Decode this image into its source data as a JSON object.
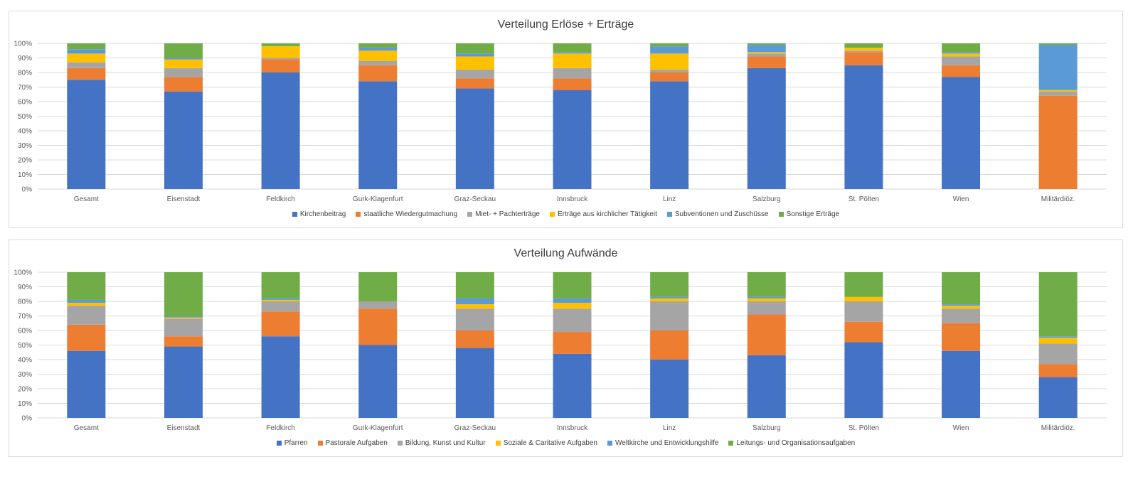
{
  "chart_data": [
    {
      "type": "bar",
      "stacked": true,
      "title": "Verteilung Erlöse + Erträge",
      "categories": [
        "Gesamt",
        "Eisenstadt",
        "Feldkirch",
        "Gurk-Klagenfurt",
        "Graz-Seckau",
        "Innsbruck",
        "Linz",
        "Salzburg",
        "St. Pölten",
        "Wien",
        "Militärdiöz."
      ],
      "yticks": [
        "0%",
        "10%",
        "20%",
        "30%",
        "40%",
        "50%",
        "60%",
        "70%",
        "80%",
        "90%",
        "100%"
      ],
      "ylim": [
        0,
        100
      ],
      "grid": true,
      "legend_position": "bottom",
      "series": [
        {
          "name": "Kirchenbeitrag",
          "color": "#4472C4",
          "values": [
            75,
            67,
            80,
            74,
            69,
            68,
            74,
            83,
            85,
            77,
            0
          ]
        },
        {
          "name": "staatliche Wiedergutmachung",
          "color": "#ED7D31",
          "values": [
            8,
            10,
            9,
            11,
            7,
            8,
            6,
            8,
            9,
            8,
            64
          ]
        },
        {
          "name": "Miet- + Pachterträge",
          "color": "#A5A5A5",
          "values": [
            4,
            6,
            1,
            3,
            6,
            7,
            2,
            2,
            1,
            6,
            3
          ]
        },
        {
          "name": "Erträge aus kirchlicher Tätigkeit",
          "color": "#FFC000",
          "values": [
            6,
            6,
            8,
            7,
            9,
            10,
            11,
            1,
            2,
            2,
            1
          ]
        },
        {
          "name": "Subventionen und Zuschüsse",
          "color": "#5B9BD5",
          "values": [
            3,
            1,
            0,
            2,
            2,
            1,
            5,
            5,
            0,
            1,
            31
          ]
        },
        {
          "name": "Sonstige Erträge",
          "color": "#70AD47",
          "values": [
            4,
            10,
            2,
            3,
            7,
            6,
            2,
            1,
            3,
            6,
            1
          ]
        }
      ]
    },
    {
      "type": "bar",
      "stacked": true,
      "title": "Verteilung Aufwände",
      "categories": [
        "Gesamt",
        "Eisenstadt",
        "Feldkirch",
        "Gurk-Klagenfurt",
        "Graz-Seckau",
        "Innsbruck",
        "Linz",
        "Salzburg",
        "St. Pölten",
        "Wien",
        "Militärdiöz."
      ],
      "yticks": [
        "0%",
        "10%",
        "20%",
        "30%",
        "40%",
        "50%",
        "60%",
        "70%",
        "80%",
        "90%",
        "100%"
      ],
      "ylim": [
        0,
        100
      ],
      "grid": true,
      "legend_position": "bottom",
      "series": [
        {
          "name": "Pfarren",
          "color": "#4472C4",
          "values": [
            46,
            49,
            56,
            50,
            48,
            44,
            40,
            43,
            52,
            46,
            28
          ]
        },
        {
          "name": "Pastorale Aufgaben",
          "color": "#ED7D31",
          "values": [
            18,
            7,
            17,
            25,
            12,
            15,
            20,
            28,
            14,
            19,
            9
          ]
        },
        {
          "name": "Bildung, Kunst und Kultur",
          "color": "#A5A5A5",
          "values": [
            13,
            12,
            7,
            5,
            15,
            16,
            20,
            9,
            14,
            10,
            14
          ]
        },
        {
          "name": "Soziale & Caritative Aufgaben",
          "color": "#FFC000",
          "values": [
            2,
            1,
            1,
            0,
            3,
            4,
            2,
            2,
            3,
            2,
            4
          ]
        },
        {
          "name": "Weltkirche und Entwicklungshilfe",
          "color": "#5B9BD5",
          "values": [
            2,
            1,
            1,
            0,
            4,
            3,
            1,
            1,
            0,
            1,
            1
          ]
        },
        {
          "name": "Leitungs- und Organisationsaufgaben",
          "color": "#70AD47",
          "values": [
            19,
            30,
            18,
            20,
            18,
            18,
            17,
            17,
            17,
            22,
            44
          ]
        }
      ]
    }
  ]
}
